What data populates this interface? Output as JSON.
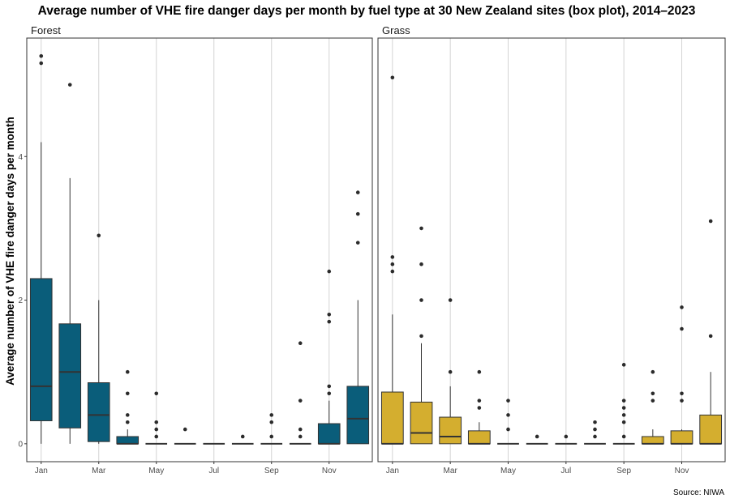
{
  "title": "Average number of VHE fire danger days per month by fuel type at 30 New Zealand sites (box plot), 2014–2023",
  "ylabel": "Average number of VHE fire danger days per month",
  "caption": "Source: NIWA",
  "chart_data": {
    "type": "box",
    "months": [
      "Jan",
      "Feb",
      "Mar",
      "Apr",
      "May",
      "Jun",
      "Jul",
      "Aug",
      "Sep",
      "Oct",
      "Nov",
      "Dec"
    ],
    "x_tick_labels": [
      "Jan",
      "Mar",
      "May",
      "Jul",
      "Sep",
      "Nov"
    ],
    "ylim": [
      -0.25,
      5.65
    ],
    "y_ticks": [
      0,
      2,
      4
    ],
    "grid": true,
    "panels": [
      {
        "label": "Forest",
        "color": "#0a5d7a",
        "boxes": [
          {
            "month": "Jan",
            "q1": 0.32,
            "median": 0.8,
            "q3": 2.3,
            "whisker_low": 0,
            "whisker_high": 4.2,
            "outliers": [
              5.4,
              5.3
            ]
          },
          {
            "month": "Feb",
            "q1": 0.22,
            "median": 1.0,
            "q3": 1.67,
            "whisker_low": 0,
            "whisker_high": 3.7,
            "outliers": [
              5.0
            ]
          },
          {
            "month": "Mar",
            "q1": 0.03,
            "median": 0.4,
            "q3": 0.85,
            "whisker_low": 0,
            "whisker_high": 2.0,
            "outliers": [
              2.9
            ]
          },
          {
            "month": "Apr",
            "q1": 0,
            "median": 0,
            "q3": 0.1,
            "whisker_low": 0,
            "whisker_high": 0.2,
            "outliers": [
              1.0,
              0.7,
              0.4,
              0.3
            ]
          },
          {
            "month": "May",
            "q1": 0,
            "median": 0,
            "q3": 0,
            "whisker_low": 0,
            "whisker_high": 0,
            "outliers": [
              0.7,
              0.3,
              0.2,
              0.1
            ]
          },
          {
            "month": "Jun",
            "q1": 0,
            "median": 0,
            "q3": 0,
            "whisker_low": 0,
            "whisker_high": 0,
            "outliers": [
              0.2
            ]
          },
          {
            "month": "Jul",
            "q1": 0,
            "median": 0,
            "q3": 0,
            "whisker_low": 0,
            "whisker_high": 0,
            "outliers": []
          },
          {
            "month": "Aug",
            "q1": 0,
            "median": 0,
            "q3": 0,
            "whisker_low": 0,
            "whisker_high": 0,
            "outliers": [
              0.1
            ]
          },
          {
            "month": "Sep",
            "q1": 0,
            "median": 0,
            "q3": 0,
            "whisker_low": 0,
            "whisker_high": 0,
            "outliers": [
              0.4,
              0.3,
              0.1
            ]
          },
          {
            "month": "Oct",
            "q1": 0,
            "median": 0,
            "q3": 0,
            "whisker_low": 0,
            "whisker_high": 0,
            "outliers": [
              1.4,
              0.6,
              0.2,
              0.1
            ]
          },
          {
            "month": "Nov",
            "q1": 0,
            "median": 0,
            "q3": 0.28,
            "whisker_low": 0,
            "whisker_high": 0.6,
            "outliers": [
              2.4,
              1.8,
              1.7,
              0.8,
              0.7
            ]
          },
          {
            "month": "Dec",
            "q1": 0,
            "median": 0.35,
            "q3": 0.8,
            "whisker_low": 0,
            "whisker_high": 2.0,
            "outliers": [
              3.5,
              3.2,
              2.8
            ]
          }
        ]
      },
      {
        "label": "Grass",
        "color": "#d4ae2f",
        "boxes": [
          {
            "month": "Jan",
            "q1": 0,
            "median": 0,
            "q3": 0.72,
            "whisker_low": 0,
            "whisker_high": 1.8,
            "outliers": [
              5.1,
              2.6,
              2.5,
              2.4
            ]
          },
          {
            "month": "Feb",
            "q1": 0,
            "median": 0.15,
            "q3": 0.58,
            "whisker_low": 0,
            "whisker_high": 1.4,
            "outliers": [
              3.0,
              2.5,
              2.0,
              1.5
            ]
          },
          {
            "month": "Mar",
            "q1": 0,
            "median": 0.1,
            "q3": 0.37,
            "whisker_low": 0,
            "whisker_high": 0.8,
            "outliers": [
              2.0,
              1.0
            ]
          },
          {
            "month": "Apr",
            "q1": 0,
            "median": 0,
            "q3": 0.18,
            "whisker_low": 0,
            "whisker_high": 0.3,
            "outliers": [
              1.0,
              0.6,
              0.5
            ]
          },
          {
            "month": "May",
            "q1": 0,
            "median": 0,
            "q3": 0,
            "whisker_low": 0,
            "whisker_high": 0,
            "outliers": [
              0.6,
              0.4,
              0.2
            ]
          },
          {
            "month": "Jun",
            "q1": 0,
            "median": 0,
            "q3": 0,
            "whisker_low": 0,
            "whisker_high": 0,
            "outliers": [
              0.1
            ]
          },
          {
            "month": "Jul",
            "q1": 0,
            "median": 0,
            "q3": 0,
            "whisker_low": 0,
            "whisker_high": 0,
            "outliers": [
              0.1
            ]
          },
          {
            "month": "Aug",
            "q1": 0,
            "median": 0,
            "q3": 0,
            "whisker_low": 0,
            "whisker_high": 0,
            "outliers": [
              0.3,
              0.2,
              0.1
            ]
          },
          {
            "month": "Sep",
            "q1": 0,
            "median": 0,
            "q3": 0,
            "whisker_low": 0,
            "whisker_high": 0,
            "outliers": [
              1.1,
              0.6,
              0.5,
              0.4,
              0.3,
              0.1
            ]
          },
          {
            "month": "Oct",
            "q1": 0,
            "median": 0,
            "q3": 0.1,
            "whisker_low": 0,
            "whisker_high": 0.2,
            "outliers": [
              1.0,
              0.7,
              0.6
            ]
          },
          {
            "month": "Nov",
            "q1": 0,
            "median": 0,
            "q3": 0.18,
            "whisker_low": 0,
            "whisker_high": 0.2,
            "outliers": [
              1.9,
              1.6,
              0.7,
              0.6
            ]
          },
          {
            "month": "Dec",
            "q1": 0,
            "median": 0,
            "q3": 0.4,
            "whisker_low": 0,
            "whisker_high": 1.0,
            "outliers": [
              3.1,
              1.5
            ]
          }
        ]
      }
    ]
  }
}
